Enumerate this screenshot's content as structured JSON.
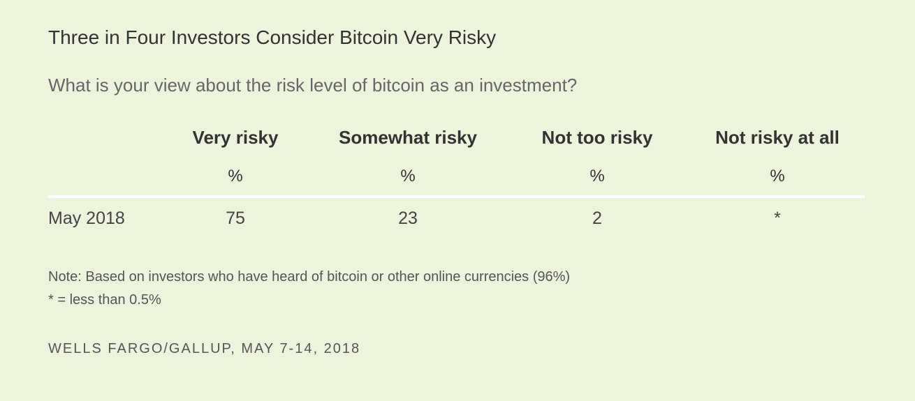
{
  "title": "Three in Four Investors Consider Bitcoin Very Risky",
  "subtitle": "What is your view about the risk level of bitcoin as an investment?",
  "chart_data": {
    "type": "table",
    "columns": [
      "Very risky",
      "Somewhat risky",
      "Not too risky",
      "Not risky at all"
    ],
    "units": [
      "%",
      "%",
      "%",
      "%"
    ],
    "rows": [
      {
        "label": "May 2018",
        "values": [
          "75",
          "23",
          "2",
          "*"
        ]
      }
    ]
  },
  "notes": [
    "Note: Based on investors who have heard of bitcoin or other online currencies (96%)",
    "* = less than 0.5%"
  ],
  "source": "WELLS FARGO/GALLUP, MAY 7-14, 2018",
  "colors": {
    "background": "#edf4dc",
    "text": "#333333",
    "rule": "#ffffff"
  }
}
